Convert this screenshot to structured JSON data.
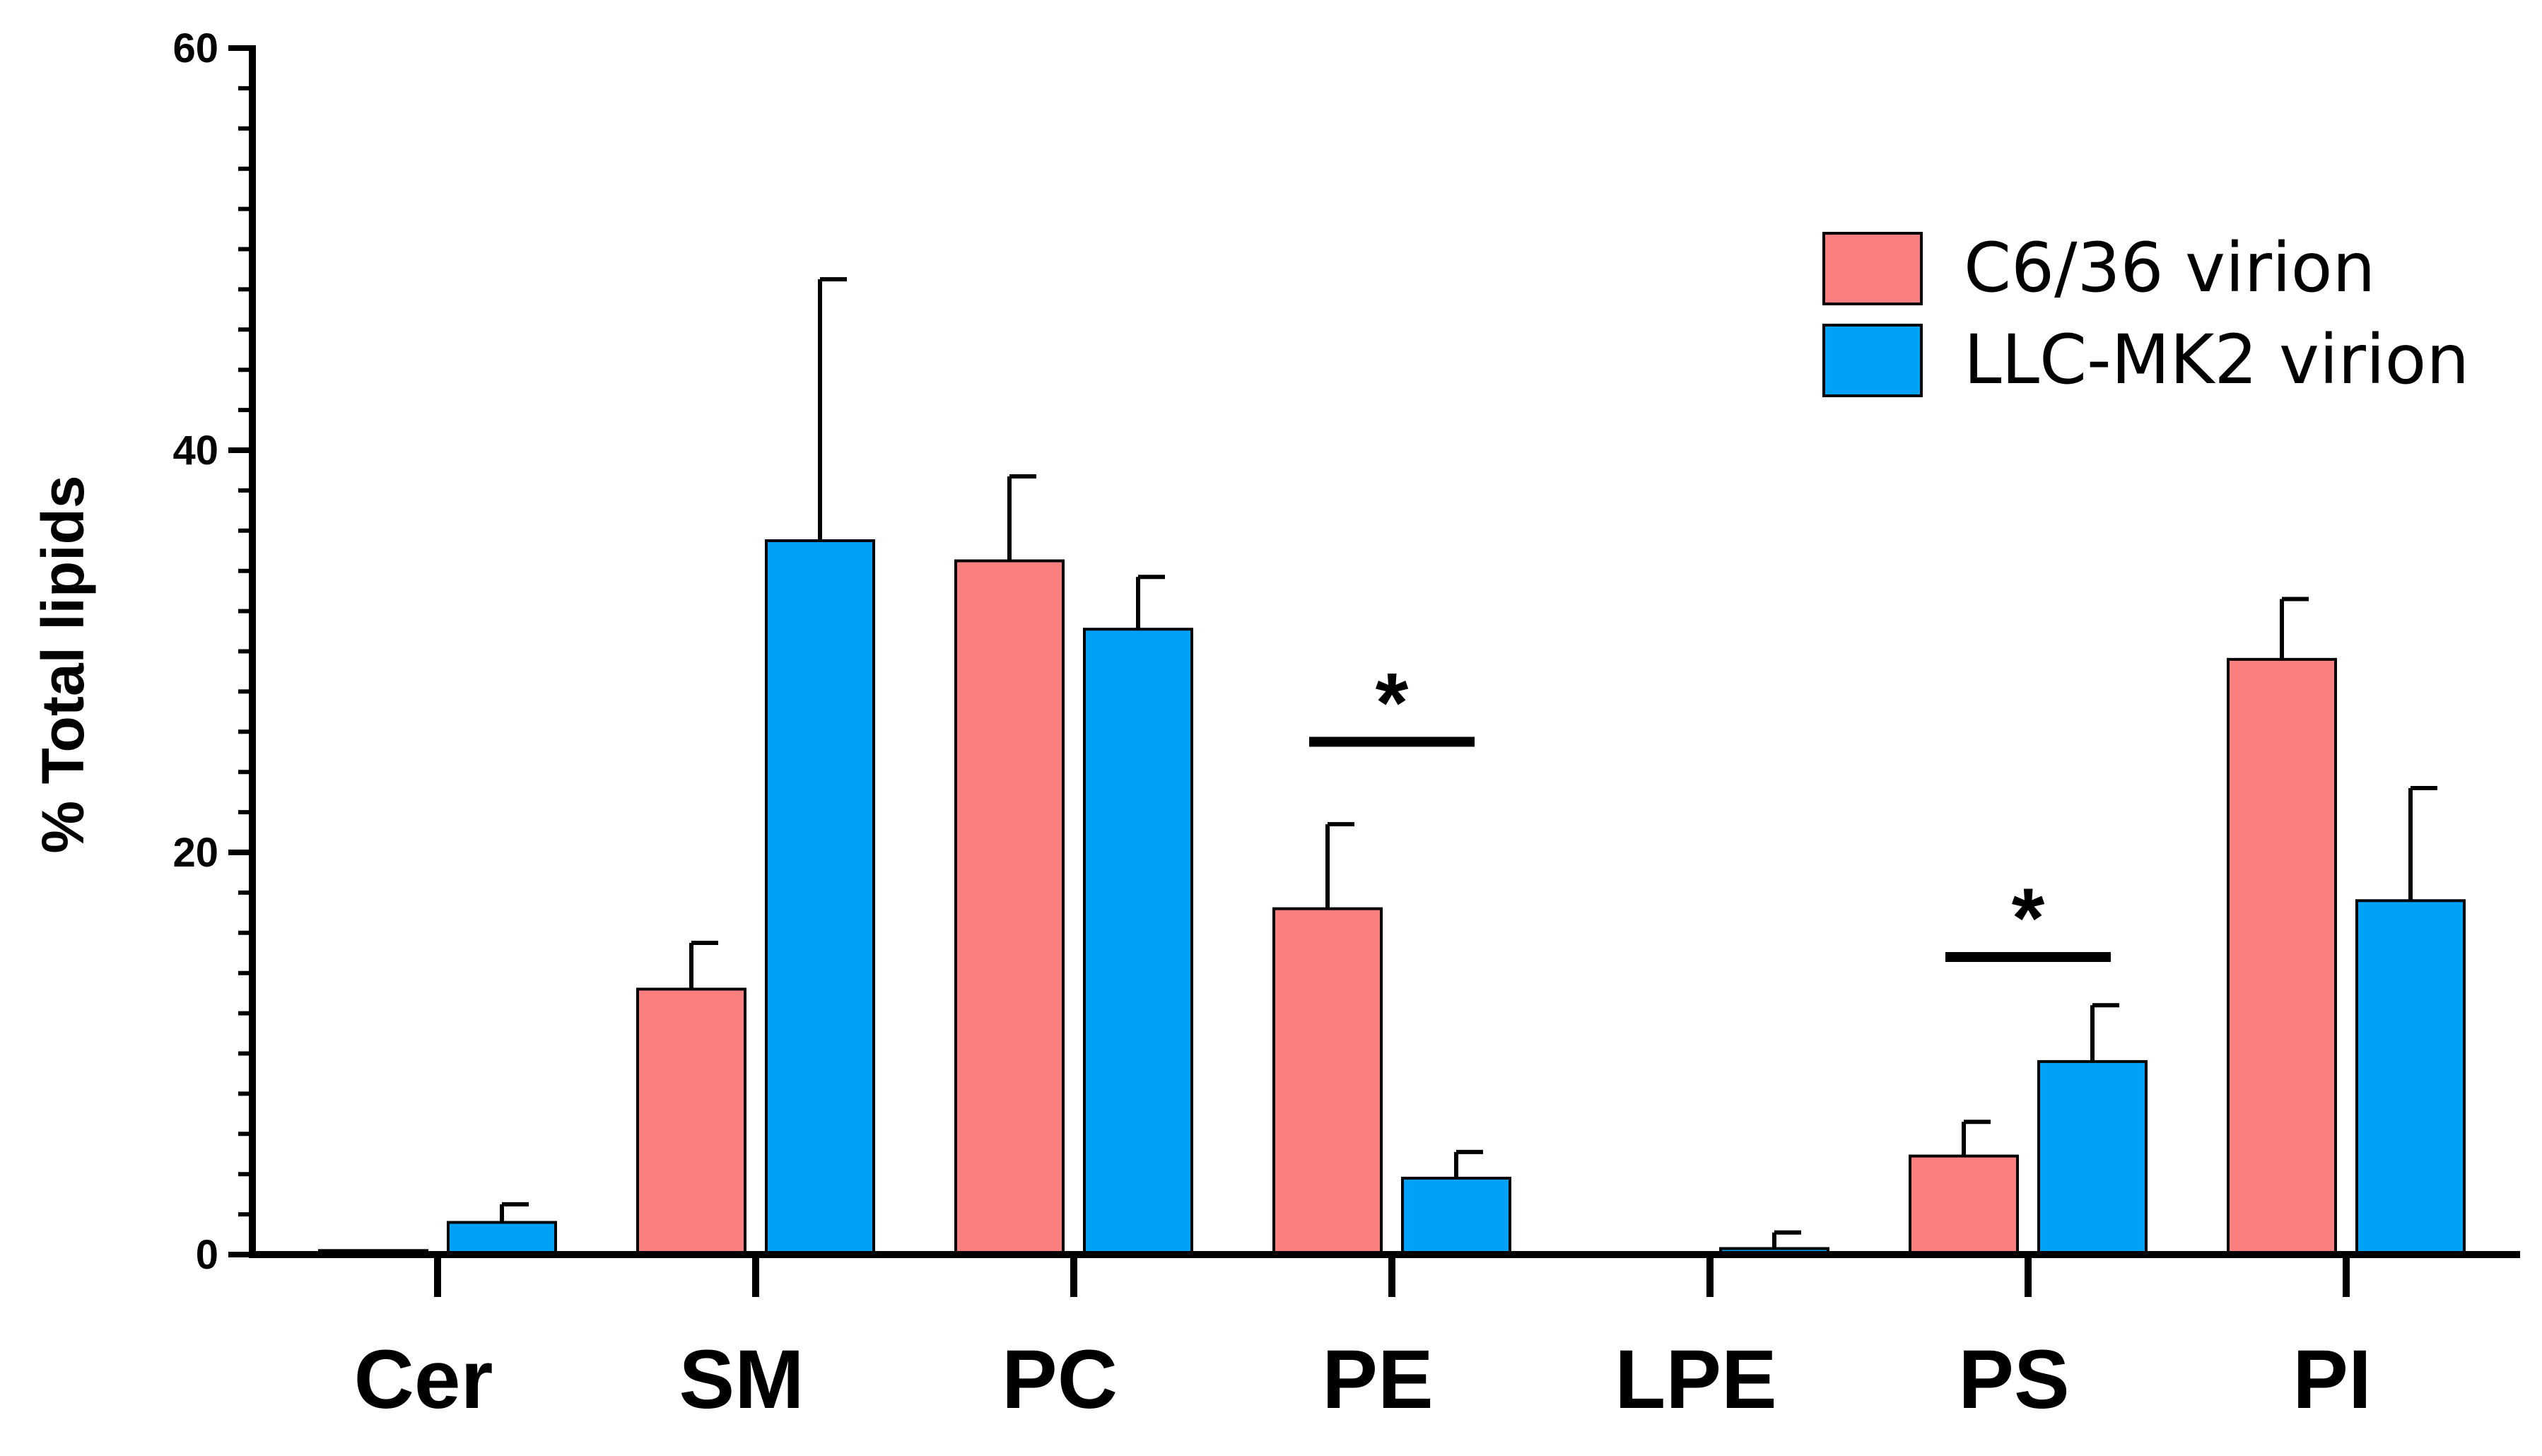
{
  "chart_data": {
    "type": "bar",
    "title": "",
    "xlabel": "",
    "ylabel": "% Total lipids",
    "ylim": [
      0,
      60
    ],
    "yticks": [
      0,
      20,
      40,
      60
    ],
    "categories": [
      "Cer",
      "SM",
      "PC",
      "PE",
      "LPE",
      "PS",
      "PI"
    ],
    "series": [
      {
        "name": "C6/36 virion",
        "color": "#fa7f7f",
        "values": [
          0.2,
          13.2,
          34.5,
          17.2,
          0.0,
          4.9,
          29.6
        ],
        "errors": [
          0.0,
          2.3,
          4.2,
          4.2,
          0.0,
          1.7,
          3.0
        ]
      },
      {
        "name": "LLC-MK2 virion",
        "color": "#00a2f8",
        "values": [
          1.6,
          35.5,
          31.1,
          3.8,
          0.3,
          9.6,
          17.6
        ],
        "errors": [
          0.9,
          13.0,
          2.6,
          1.3,
          0.8,
          2.8,
          5.6
        ]
      }
    ],
    "legend": {
      "position": "top-right"
    },
    "annotations": [
      {
        "text": "*",
        "category": "PE",
        "bar_y": 25.5
      },
      {
        "text": "*",
        "category": "PS",
        "bar_y": 14.8
      }
    ]
  }
}
